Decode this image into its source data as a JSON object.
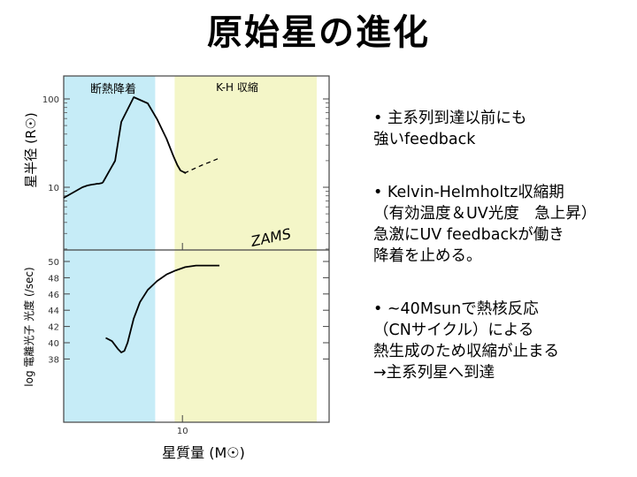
{
  "title": "原始星の進化",
  "chart_data": {
    "type": "line",
    "xlabel": "星質量 (M☉)",
    "x_tick_labels": [
      "10"
    ],
    "regions": [
      {
        "label": "断熱降着",
        "color": "#c6ecf7"
      },
      {
        "label": "K-H 収縮",
        "color": "#f4f6c8"
      }
    ],
    "panels": [
      {
        "name": "radius",
        "ylabel": "星半径 (R☉)",
        "scale": "log",
        "y_tick_labels": [
          "100",
          "10"
        ],
        "annotation": "ZAMS",
        "series": [
          {
            "x": [
              0.0,
              0.16,
              0.32,
              0.48,
              0.61,
              0.72,
              0.8,
              0.86,
              0.9,
              0.95,
              1.0
            ],
            "y": [
              0.88,
              0.92,
              0.96,
              1.0,
              1.02,
              1.03,
              1.035,
              1.04,
              1.04,
              1.045,
              1.05
            ]
          },
          {
            "x": [
              1.0,
              1.32,
              1.48,
              1.8,
              2.16,
              2.4,
              2.64,
              2.82,
              2.92,
              3.0,
              3.09,
              3.14
            ],
            "y": [
              1.05,
              1.3,
              1.74,
              2.02,
              1.95,
              1.77,
              1.55,
              1.35,
              1.25,
              1.19,
              1.17,
              1.16
            ]
          }
        ],
        "zams_series": {
          "x": [
            3.1,
            3.3,
            3.55,
            3.78,
            4.0
          ],
          "y": [
            1.16,
            1.2,
            1.25,
            1.29,
            1.33
          ]
        }
      },
      {
        "name": "luminosity",
        "ylabel": "log 電離光子 光度 (/sec)",
        "y_ticks": [
          38,
          40,
          42,
          44,
          46,
          48,
          50
        ],
        "y_tick_labels": [
          "38",
          "40",
          "42",
          "44",
          "46",
          "48",
          "50"
        ],
        "series": [
          {
            "x": [
              1.08,
              1.24,
              1.4,
              1.48,
              1.56,
              1.64,
              1.72,
              1.8,
              1.96,
              2.16,
              2.4,
              2.64,
              2.88,
              3.12,
              3.4,
              3.7,
              4.0
            ],
            "y": [
              40.6,
              40.2,
              39.2,
              38.8,
              39.0,
              40.0,
              41.5,
              43.0,
              45.0,
              46.5,
              47.6,
              48.4,
              48.9,
              49.3,
              49.5,
              49.5,
              49.5
            ]
          }
        ]
      }
    ]
  },
  "bullets": [
    {
      "lines": [
        "• 主系列到達以前にも",
        "強いfeedback"
      ]
    },
    {
      "lines": [
        "• Kelvin-Helmholtz収縮期",
        "（有効温度＆UV光度　急上昇）",
        "急激にUV feedbackが働き",
        "降着を止める。"
      ]
    },
    {
      "lines": [
        "• ~40Msunで熱核反応",
        "（CNサイクル）による",
        "熱生成のため収縮が止まる",
        "→主系列星へ到達"
      ]
    }
  ]
}
